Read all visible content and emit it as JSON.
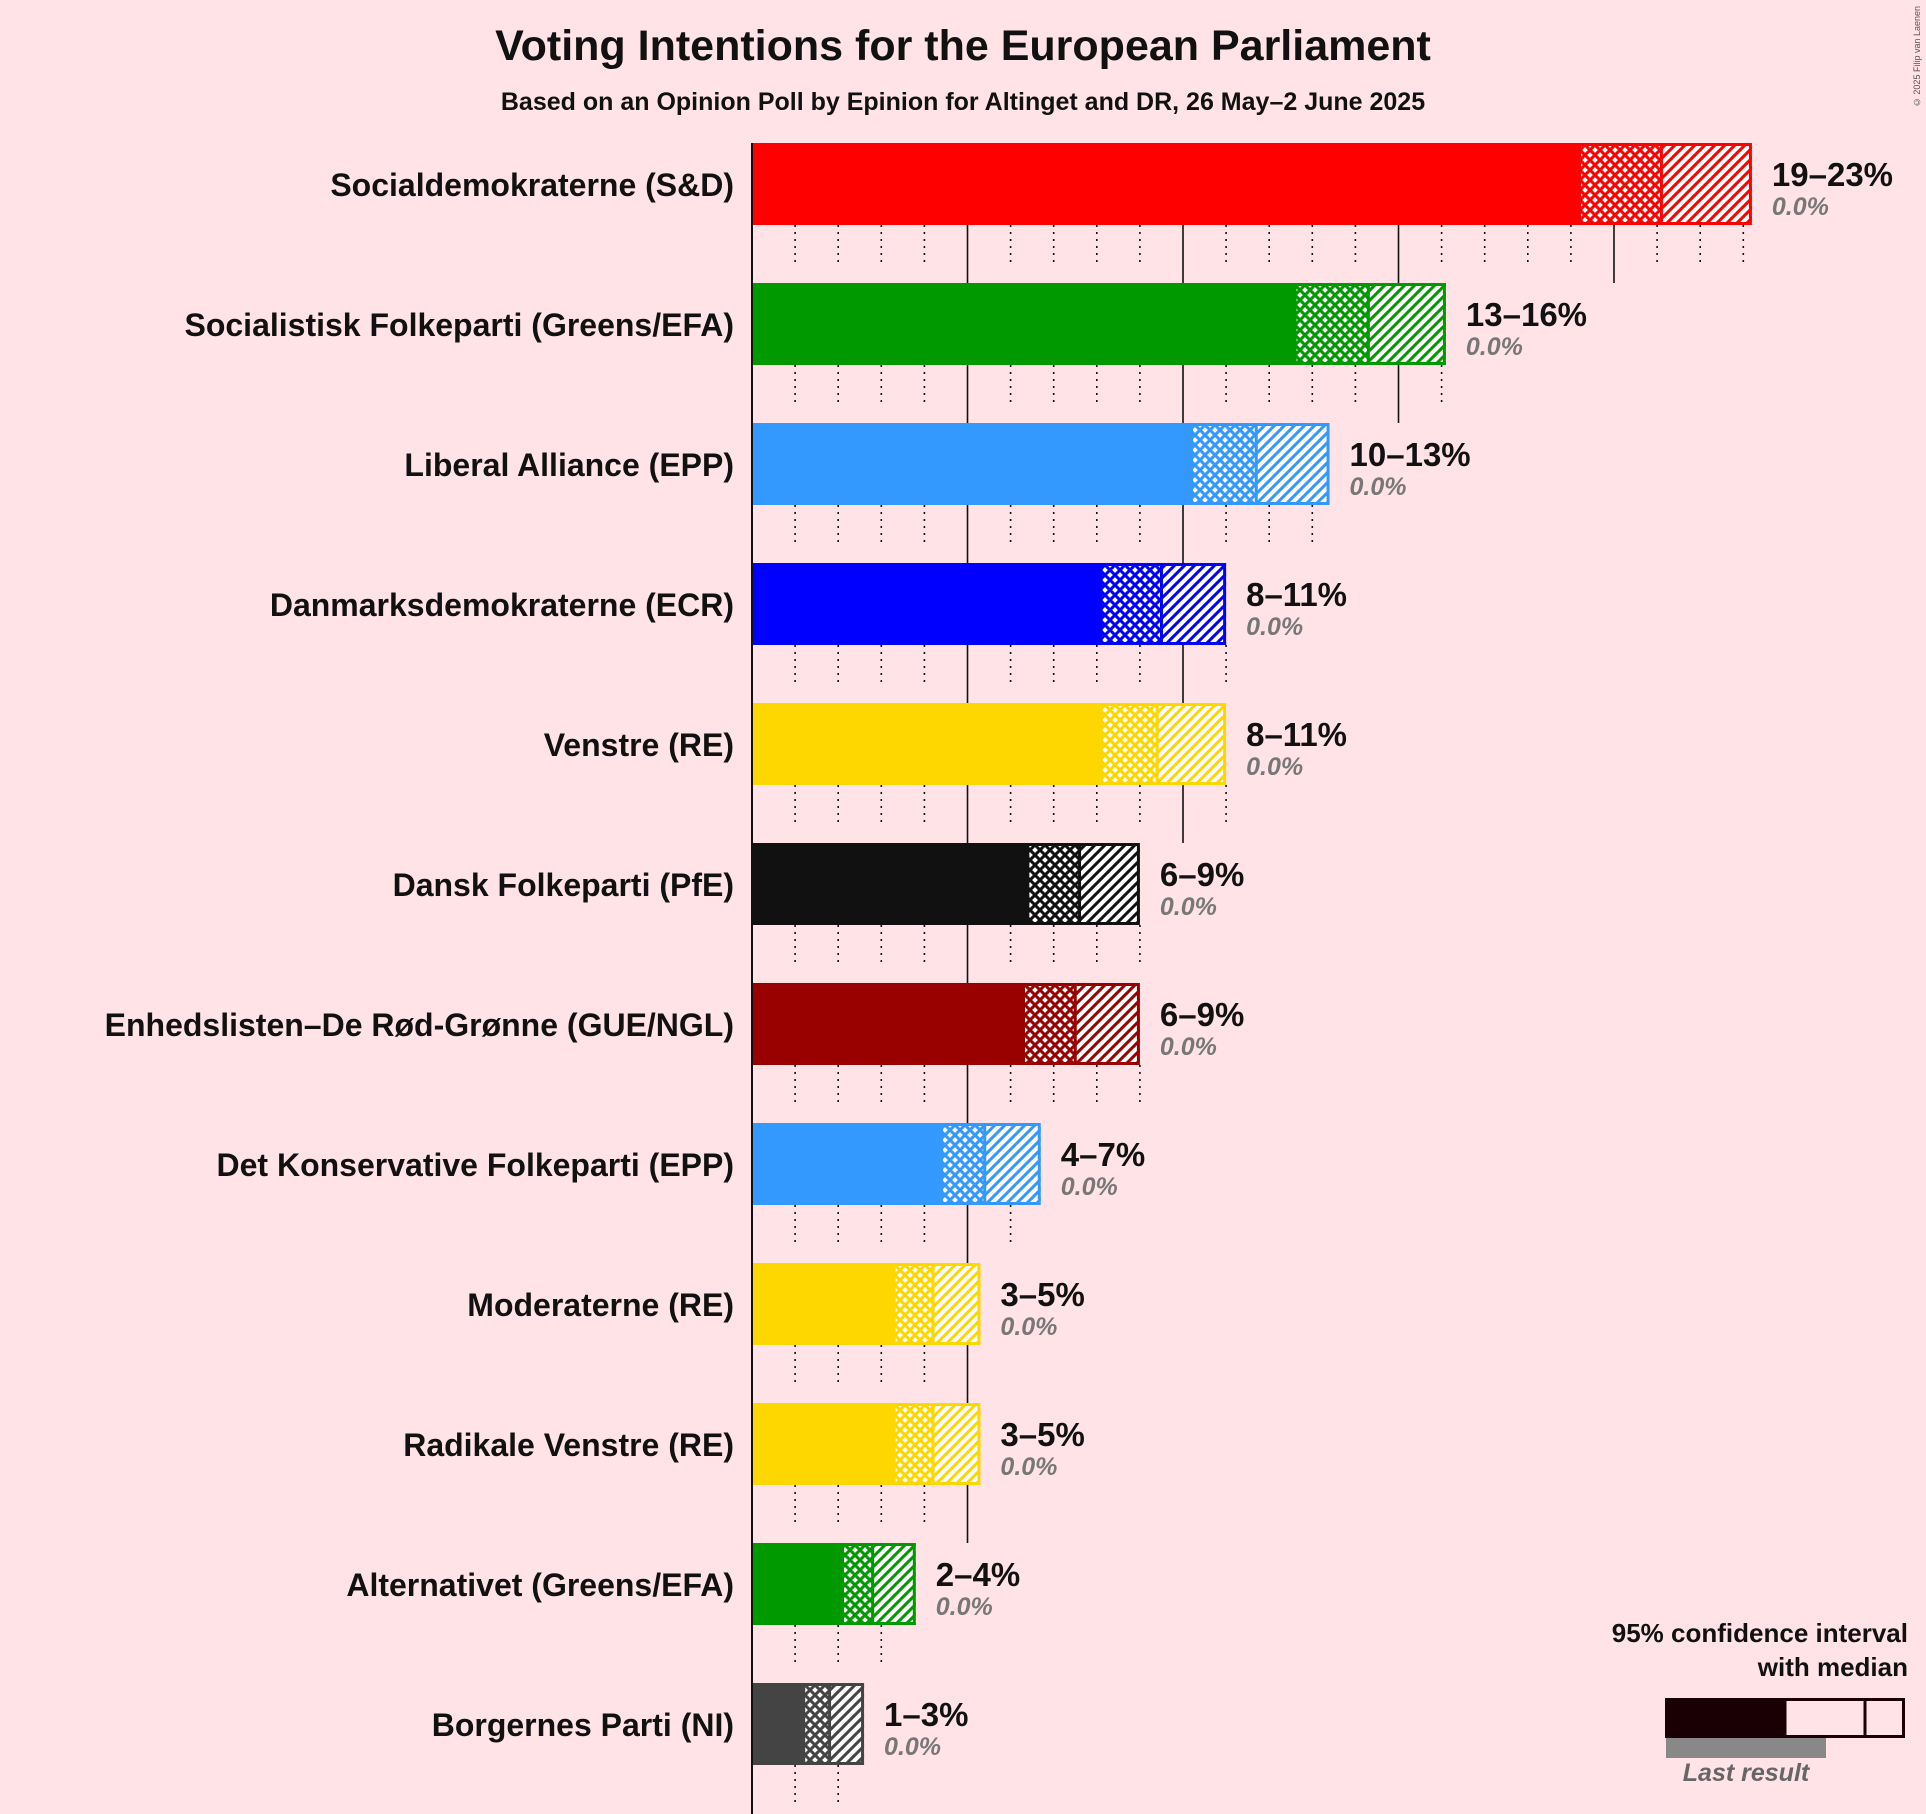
{
  "title": "Voting Intentions for the European Parliament",
  "subtitle": "Based on an Opinion Poll by Epinion for Altinget and DR, 26 May–2 June 2025",
  "copyright": "© 2025 Filip van Laenen",
  "legend": {
    "title_line1": "95% confidence interval",
    "title_line2": "with median",
    "last_result": "Last result",
    "color": "#1a0005"
  },
  "chart_data": {
    "type": "bar",
    "orientation": "horizontal",
    "unit": "%",
    "xlim": [
      0,
      24
    ],
    "seat_ticks_solid_every": 5,
    "categories": [
      "Socialdemokraterne (S&D)",
      "Socialistisk Folkeparti (Greens/EFA)",
      "Liberal Alliance (EPP)",
      "Danmarksdemokraterne (ECR)",
      "Venstre (RE)",
      "Dansk Folkeparti (PfE)",
      "Enhedslisten–De Rød-Grønne (GUE/NGL)",
      "Det Konservative Folkeparti (EPP)",
      "Moderaterne (RE)",
      "Radikale Venstre (RE)",
      "Alternativet (Greens/EFA)",
      "Borgernes Parti (NI)"
    ],
    "series": [
      {
        "party": "Socialdemokraterne (S&D)",
        "color": "#ff0000",
        "low": 19.2,
        "median": 21.1,
        "high": 23.2,
        "range_label": "19–23%",
        "last_result": "0.0%"
      },
      {
        "party": "Socialistisk Folkeparti (Greens/EFA)",
        "color": "#009900",
        "low": 12.6,
        "median": 14.3,
        "high": 16.1,
        "range_label": "13–16%",
        "last_result": "0.0%"
      },
      {
        "party": "Liberal Alliance (EPP)",
        "color": "#3399ff",
        "low": 10.2,
        "median": 11.7,
        "high": 13.4,
        "range_label": "10–13%",
        "last_result": "0.0%"
      },
      {
        "party": "Danmarksdemokraterne (ECR)",
        "color": "#0000ff",
        "low": 8.1,
        "median": 9.5,
        "high": 11.0,
        "range_label": "8–11%",
        "last_result": "0.0%"
      },
      {
        "party": "Venstre (RE)",
        "color": "#ffd700",
        "low": 8.1,
        "median": 9.4,
        "high": 11.0,
        "range_label": "8–11%",
        "last_result": "0.0%"
      },
      {
        "party": "Dansk Folkeparti (PfE)",
        "color": "#111111",
        "low": 6.4,
        "median": 7.6,
        "high": 9.0,
        "range_label": "6–9%",
        "last_result": "0.0%"
      },
      {
        "party": "Enhedslisten–De Rød-Grønne (GUE/NGL)",
        "color": "#990000",
        "low": 6.3,
        "median": 7.5,
        "high": 9.0,
        "range_label": "6–9%",
        "last_result": "0.0%"
      },
      {
        "party": "Det Konservative Folkeparti (EPP)",
        "color": "#3399ff",
        "low": 4.4,
        "median": 5.4,
        "high": 6.7,
        "range_label": "4–7%",
        "last_result": "0.0%"
      },
      {
        "party": "Moderaterne (RE)",
        "color": "#ffd700",
        "low": 3.3,
        "median": 4.2,
        "high": 5.3,
        "range_label": "3–5%",
        "last_result": "0.0%"
      },
      {
        "party": "Radikale Venstre (RE)",
        "color": "#ffd700",
        "low": 3.3,
        "median": 4.2,
        "high": 5.3,
        "range_label": "3–5%",
        "last_result": "0.0%"
      },
      {
        "party": "Alternativet (Greens/EFA)",
        "color": "#009900",
        "low": 2.1,
        "median": 2.8,
        "high": 3.8,
        "range_label": "2–4%",
        "last_result": "0.0%"
      },
      {
        "party": "Borgernes Parti (NI)",
        "color": "#444444",
        "low": 1.2,
        "median": 1.8,
        "high": 2.6,
        "range_label": "1–3%",
        "last_result": "0.0%"
      }
    ]
  }
}
